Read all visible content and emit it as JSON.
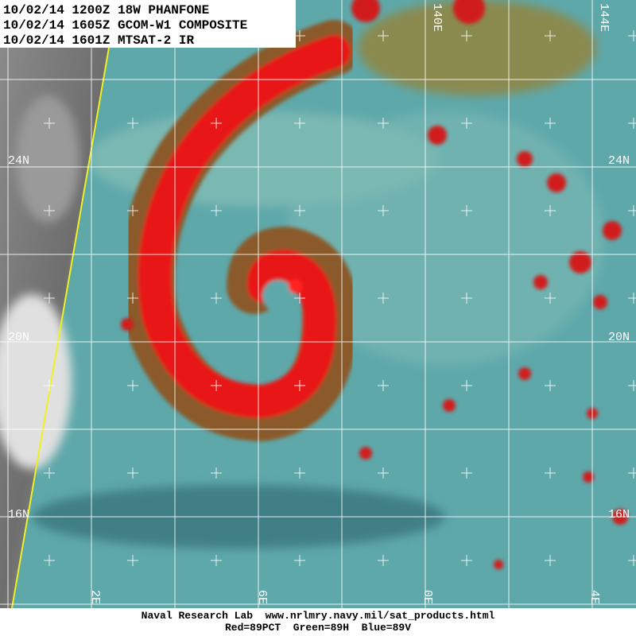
{
  "header": {
    "lines": [
      "10/02/14 1200Z 18W PHANFONE",
      "10/02/14 1605Z GCOM-W1 COMPOSITE",
      "10/02/14 1601Z MTSAT-2 IR"
    ]
  },
  "map": {
    "lat_labels_left": [
      "24N",
      "20N",
      "16N"
    ],
    "lat_labels_right": [
      "24N",
      "20N",
      "16N"
    ],
    "lon_labels_top": [
      "140E",
      "144E"
    ],
    "lon_labels_bottom": [
      "2E",
      "6E",
      "0E",
      "4E"
    ]
  },
  "footer": {
    "lines": [
      "Naval Research Lab  www.nrlmry.navy.mil/sat_products.html",
      "Red=89PCT  Green=89H  Blue=89V"
    ]
  }
}
